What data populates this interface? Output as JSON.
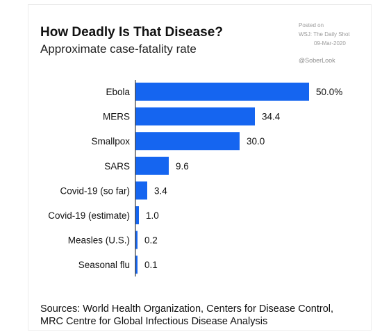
{
  "header": {
    "title": "How Deadly Is That Disease?",
    "subtitle": "Approximate case-fatality rate"
  },
  "watermark": {
    "posted_on": "Posted on",
    "source": "WSJ: The Daily Shot",
    "date": "09-Mar-2020",
    "handle": "@SoberLook"
  },
  "footer": {
    "line1": "Sources: World Health Organization, Centers for Disease Control,",
    "line2": "MRC Centre for Global Infectious Disease Analysis"
  },
  "colors": {
    "bar": "#1565f0",
    "axis": "#111111"
  },
  "chart_data": {
    "type": "bar",
    "orientation": "horizontal",
    "title": "How Deadly Is That Disease?",
    "subtitle": "Approximate case-fatality rate",
    "categories": [
      "Ebola",
      "MERS",
      "Smallpox",
      "SARS",
      "Covid-19 (so far)",
      "Covid-19 (estimate)",
      "Measles (U.S.)",
      "Seasonal flu"
    ],
    "values": [
      50.0,
      34.4,
      30.0,
      9.6,
      3.4,
      1.0,
      0.2,
      0.1
    ],
    "value_labels": [
      "50.0%",
      "34.4",
      "30.0",
      "9.6",
      "3.4",
      "1.0",
      "0.2",
      "0.1"
    ],
    "xlim": [
      0,
      50
    ],
    "grid": false,
    "legend": "none"
  }
}
